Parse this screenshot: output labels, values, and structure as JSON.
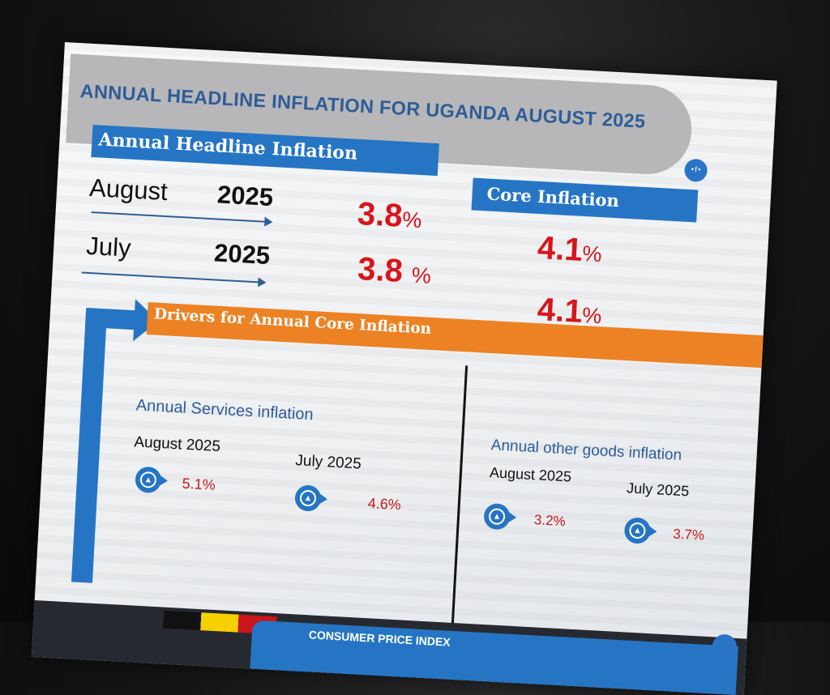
{
  "title": "ANNUAL HEADLINE INFLATION FOR UGANDA AUGUST 2025",
  "logo_text": "•f•",
  "headline": {
    "header": "Annual Headline Inflation",
    "rows": [
      {
        "month": "August",
        "year": "2025",
        "value": "3.8",
        "unit": "%"
      },
      {
        "month": "July",
        "year": "2025",
        "value": "3.8",
        "unit": "%"
      }
    ]
  },
  "core": {
    "header": "Core Inflation",
    "rows": [
      {
        "value": "4.1",
        "unit": "%"
      },
      {
        "value": "4.1",
        "unit": "%"
      }
    ]
  },
  "drivers": {
    "header": "Drivers for Annual Core Inflation",
    "services": {
      "title": "Annual Services inflation",
      "items": [
        {
          "period": "August 2025",
          "value": "5.1%"
        },
        {
          "period": "July  2025",
          "value": "4.6%"
        }
      ]
    },
    "other_goods": {
      "title": "Annual other goods inflation",
      "items": [
        {
          "period": "August 2025",
          "value": "3.2%"
        },
        {
          "period": "July  2025",
          "value": "3.7%"
        }
      ]
    }
  },
  "footer": {
    "text": "CONSUMER PRICE INDEX"
  },
  "colors": {
    "brand_blue": "#2675c4",
    "title_blue": "#2f5d96",
    "accent_orange": "#ec8224",
    "value_red": "#d7151b"
  },
  "icons": {
    "badge": "up-triangle-circle-icon",
    "arrow": "right-arrow-icon"
  }
}
